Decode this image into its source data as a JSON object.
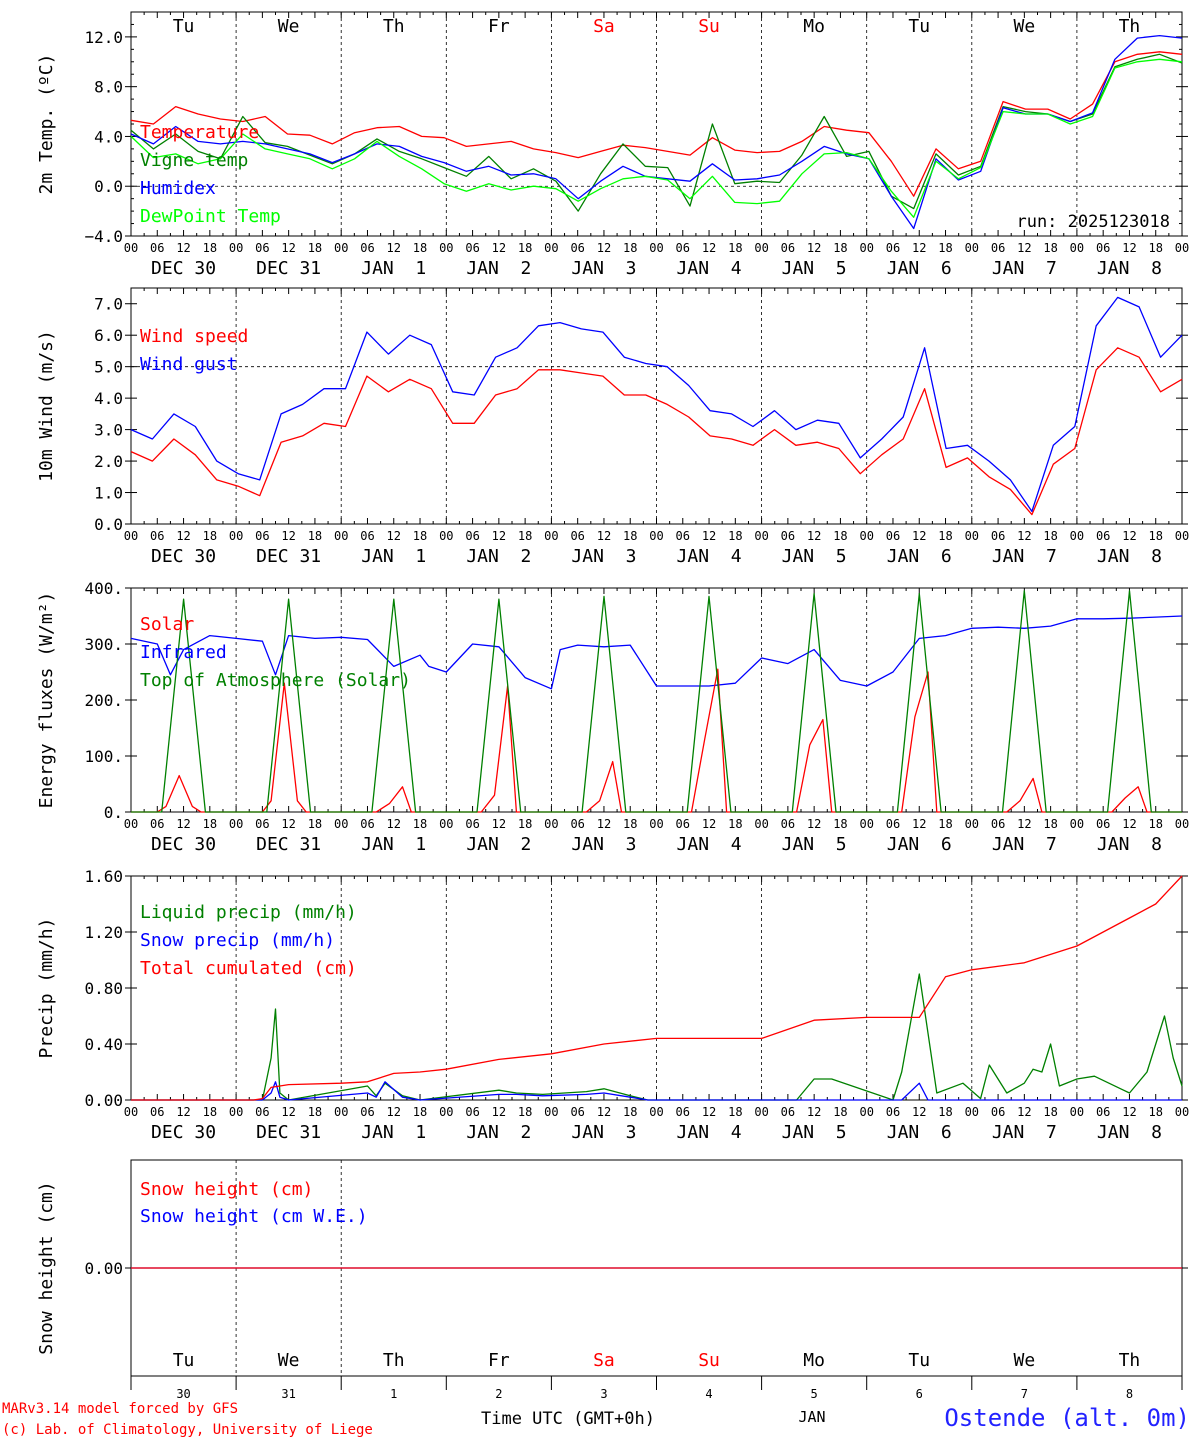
{
  "colors": {
    "red": "#ff0000",
    "green": "#008000",
    "blue": "#0000ff",
    "light_green": "#00ff00",
    "axis": "#000000"
  },
  "time": {
    "days": [
      "DEC 30",
      "DEC 31",
      "JAN  1",
      "JAN  2",
      "JAN  3",
      "JAN  4",
      "JAN  5",
      "JAN  6",
      "JAN  7",
      "JAN  8"
    ],
    "weekdays": [
      "Tu",
      "We",
      "Th",
      "Fr",
      "Sa",
      "Su",
      "Mo",
      "Tu",
      "We",
      "Th"
    ],
    "weekend_flags": [
      false,
      false,
      false,
      false,
      true,
      true,
      false,
      false,
      false,
      false
    ],
    "day_numbers": [
      "30",
      "31",
      "1",
      "2",
      "3",
      "4",
      "5",
      "6",
      "7",
      "8"
    ],
    "hour_ticks": [
      "00",
      "06",
      "12",
      "18"
    ],
    "end_tick": "00",
    "month_label": "JAN",
    "xlabel": "Time UTC (GMT+0h)"
  },
  "footer": {
    "model_line": "MARv3.14 model forced by GFS",
    "credit_line": "(c) Lab. of Climatology, University of Liege",
    "station": "Ostende (alt. 0m)"
  },
  "chart_data": [
    {
      "id": "temp",
      "type": "line",
      "ylabel": "2m Temp. (ºC)",
      "ylim": [
        -4,
        14
      ],
      "yticks": [
        -4,
        0,
        4,
        8,
        12
      ],
      "ytick_labels": [
        "−4.0",
        "0.0",
        "4.0",
        "8.0",
        "12.0"
      ],
      "ref_line": 0,
      "annotation": "run: 2025123018",
      "x_hours_step": 6,
      "legend": [
        {
          "name": "Temperature",
          "color": "#ff0000"
        },
        {
          "name": "Vigne temp",
          "color": "#008000"
        },
        {
          "name": "Humidex",
          "color": "#0000ff"
        },
        {
          "name": "DewPoint Temp",
          "color": "#00ff00"
        }
      ],
      "series": [
        {
          "name": "Temperature",
          "color": "#ff0000",
          "values": [
            5.3,
            5.0,
            6.4,
            5.8,
            5.4,
            5.2,
            5.6,
            4.2,
            4.1,
            3.4,
            4.3,
            4.7,
            4.8,
            4.0,
            3.9,
            3.2,
            3.4,
            3.6,
            3.0,
            2.7,
            2.3,
            2.8,
            3.3,
            3.1,
            2.8,
            2.5,
            3.9,
            2.9,
            2.7,
            2.8,
            3.6,
            4.8,
            4.5,
            4.3,
            2.0,
            -0.8,
            3.0,
            1.4,
            2.0,
            6.8,
            6.2,
            6.2,
            5.4,
            6.6,
            10.0,
            10.6,
            10.8,
            10.6
          ]
        },
        {
          "name": "Vigne temp",
          "color": "#008000",
          "values": [
            4.5,
            3.0,
            4.2,
            2.8,
            2.2,
            5.6,
            3.5,
            3.2,
            2.5,
            1.8,
            2.6,
            3.8,
            2.8,
            2.2,
            1.5,
            0.8,
            2.4,
            0.6,
            1.4,
            0.4,
            -2.0,
            1.0,
            3.4,
            1.6,
            1.5,
            -1.6,
            5.0,
            0.2,
            0.4,
            0.3,
            2.5,
            5.6,
            2.4,
            2.8,
            -0.8,
            -1.8,
            2.6,
            0.9,
            1.6,
            6.4,
            6.0,
            5.8,
            5.2,
            5.8,
            9.6,
            10.2,
            10.6,
            9.9
          ]
        },
        {
          "name": "Humidex",
          "color": "#0000ff",
          "values": [
            4.2,
            3.4,
            4.8,
            3.6,
            3.4,
            3.6,
            3.4,
            3.0,
            2.6,
            1.9,
            2.6,
            3.4,
            3.2,
            2.4,
            1.9,
            1.2,
            1.6,
            0.9,
            1.0,
            0.6,
            -1.0,
            0.4,
            1.6,
            0.8,
            0.6,
            0.4,
            1.8,
            0.5,
            0.6,
            0.9,
            2.0,
            3.2,
            2.6,
            2.2,
            -0.8,
            -3.4,
            2.2,
            0.5,
            1.2,
            6.3,
            5.8,
            5.8,
            5.2,
            5.9,
            10.2,
            11.9,
            12.1,
            11.9
          ]
        },
        {
          "name": "DewPoint Temp",
          "color": "#00ff00",
          "values": [
            4.0,
            2.3,
            2.6,
            1.8,
            2.2,
            4.2,
            3.0,
            2.6,
            2.2,
            1.4,
            2.2,
            3.6,
            2.4,
            1.4,
            0.2,
            -0.4,
            0.2,
            -0.3,
            0.0,
            -0.2,
            -1.2,
            -0.2,
            0.6,
            0.8,
            0.5,
            -1.0,
            0.8,
            -1.3,
            -1.4,
            -1.2,
            1.0,
            2.6,
            2.7,
            2.2,
            -0.4,
            -2.5,
            2.0,
            0.6,
            1.5,
            6.0,
            5.8,
            5.8,
            5.0,
            5.6,
            9.5,
            10.0,
            10.2,
            10.0
          ]
        }
      ]
    },
    {
      "id": "wind",
      "type": "line",
      "ylabel": "10m Wind (m/s)",
      "ylim": [
        0,
        7.5
      ],
      "yticks": [
        0,
        1,
        2,
        3,
        4,
        5,
        6,
        7
      ],
      "ytick_labels": [
        "0.0",
        "1.0",
        "2.0",
        "3.0",
        "4.0",
        "5.0",
        "6.0",
        "7.0"
      ],
      "ref_line": 5,
      "x_hours_step": 6,
      "legend": [
        {
          "name": "Wind speed",
          "color": "#ff0000"
        },
        {
          "name": "Wind gust",
          "color": "#0000ff"
        }
      ],
      "series": [
        {
          "name": "Wind speed",
          "color": "#ff0000",
          "values": [
            2.3,
            2.0,
            2.7,
            2.2,
            1.4,
            1.2,
            0.9,
            2.6,
            2.8,
            3.2,
            3.1,
            4.7,
            4.2,
            4.6,
            4.3,
            3.2,
            3.2,
            4.1,
            4.3,
            4.9,
            4.9,
            4.8,
            4.7,
            4.1,
            4.1,
            3.8,
            3.4,
            2.8,
            2.7,
            2.5,
            3.0,
            2.5,
            2.6,
            2.4,
            1.6,
            2.2,
            2.7,
            4.3,
            1.8,
            2.1,
            1.5,
            1.1,
            0.3,
            1.9,
            2.4,
            4.9,
            5.6,
            5.3,
            4.2,
            4.6
          ]
        },
        {
          "name": "Wind gust",
          "color": "#0000ff",
          "values": [
            3.0,
            2.7,
            3.5,
            3.1,
            2.0,
            1.6,
            1.4,
            3.5,
            3.8,
            4.3,
            4.3,
            6.1,
            5.4,
            6.0,
            5.7,
            4.2,
            4.1,
            5.3,
            5.6,
            6.3,
            6.4,
            6.2,
            6.1,
            5.3,
            5.1,
            5.0,
            4.4,
            3.6,
            3.5,
            3.1,
            3.6,
            3.0,
            3.3,
            3.2,
            2.1,
            2.7,
            3.4,
            5.6,
            2.4,
            2.5,
            2.0,
            1.4,
            0.4,
            2.5,
            3.1,
            6.3,
            7.2,
            6.9,
            5.3,
            6.0
          ]
        }
      ]
    },
    {
      "id": "flux",
      "type": "line",
      "ylabel": "Energy fluxes (W/m²)",
      "ylim": [
        0,
        400
      ],
      "yticks": [
        0,
        100,
        200,
        300,
        400
      ],
      "ytick_labels": [
        "0.",
        "100.",
        "200.",
        "300.",
        "400."
      ],
      "x_hours_step": 6,
      "legend": [
        {
          "name": "Solar",
          "color": "#ff0000"
        },
        {
          "name": "Infrared",
          "color": "#0000ff"
        },
        {
          "name": "Top of Atmosphere (Solar)",
          "color": "#008000"
        }
      ],
      "series": [
        {
          "name": "Infrared",
          "color": "#0000ff",
          "x_hours": [
            0,
            6,
            9,
            12,
            18,
            24,
            30,
            33,
            36,
            42,
            48,
            54,
            60,
            66,
            68,
            72,
            78,
            84,
            90,
            96,
            98,
            102,
            108,
            114,
            120,
            126,
            132,
            138,
            144,
            150,
            156,
            162,
            168,
            174,
            180,
            186,
            192,
            198,
            204,
            210,
            216,
            222,
            228,
            234,
            240
          ],
          "values": [
            310,
            300,
            245,
            290,
            315,
            310,
            305,
            245,
            315,
            310,
            312,
            308,
            260,
            280,
            260,
            250,
            300,
            295,
            240,
            220,
            290,
            298,
            295,
            298,
            225,
            225,
            225,
            230,
            275,
            265,
            290,
            235,
            225,
            250,
            310,
            315,
            328,
            330,
            328,
            332,
            345,
            345,
            346,
            348,
            350
          ]
        },
        {
          "name": "Solar",
          "color": "#ff0000",
          "x_hours": [
            0,
            6,
            8,
            11,
            14,
            16,
            24,
            30,
            32,
            35,
            38,
            40,
            48,
            56,
            59,
            62,
            64,
            72,
            80,
            83,
            86,
            88,
            96,
            104,
            107,
            110,
            112,
            120,
            128,
            131,
            134,
            136,
            144,
            152,
            155,
            158,
            160,
            168,
            176,
            179,
            182,
            184,
            192,
            200,
            203,
            206,
            208,
            216,
            224,
            227,
            230,
            232,
            240
          ],
          "values": [
            0,
            0,
            10,
            65,
            10,
            0,
            0,
            0,
            20,
            230,
            20,
            0,
            0,
            0,
            15,
            45,
            0,
            0,
            0,
            30,
            225,
            0,
            0,
            0,
            20,
            90,
            0,
            0,
            0,
            130,
            255,
            0,
            0,
            0,
            120,
            165,
            0,
            0,
            0,
            170,
            250,
            0,
            0,
            0,
            20,
            60,
            0,
            0,
            0,
            25,
            45,
            0,
            0
          ]
        },
        {
          "name": "Top of Atmosphere (Solar)",
          "color": "#008000",
          "x_hours": [
            0,
            7,
            12,
            17,
            24,
            31,
            36,
            41,
            48,
            55,
            60,
            65,
            72,
            79,
            84,
            89,
            96,
            103,
            108,
            113,
            120,
            127,
            132,
            137,
            144,
            151,
            156,
            161,
            168,
            175,
            180,
            185,
            192,
            199,
            204,
            209,
            216,
            223,
            228,
            233,
            240
          ],
          "values": [
            0,
            0,
            380,
            0,
            0,
            0,
            380,
            0,
            0,
            0,
            380,
            0,
            0,
            0,
            380,
            0,
            0,
            0,
            385,
            0,
            0,
            0,
            385,
            0,
            0,
            0,
            390,
            0,
            0,
            0,
            390,
            0,
            0,
            0,
            395,
            0,
            0,
            0,
            395,
            0,
            0
          ]
        }
      ]
    },
    {
      "id": "precip",
      "type": "line",
      "ylabel": "Precip (mm/h)",
      "ylim": [
        0,
        1.6
      ],
      "yticks": [
        0,
        0.4,
        0.8,
        1.2,
        1.6
      ],
      "ytick_labels": [
        "0.00",
        "0.40",
        "0.80",
        "1.20",
        "1.60"
      ],
      "x_hours_step": 6,
      "legend": [
        {
          "name": "Liquid precip (mm/h)",
          "color": "#008000"
        },
        {
          "name": "Snow precip (mm/h)",
          "color": "#0000ff"
        },
        {
          "name": "Total cumulated (cm)",
          "color": "#ff0000"
        }
      ],
      "series": [
        {
          "name": "Liquid precip (mm/h)",
          "color": "#008000",
          "x_hours": [
            0,
            30,
            32,
            33,
            34,
            36,
            54,
            56,
            58,
            62,
            66,
            84,
            88,
            94,
            104,
            108,
            114,
            118,
            152,
            156,
            160,
            174,
            176,
            180,
            184,
            190,
            194,
            196,
            200,
            204,
            206,
            208,
            210,
            212,
            216,
            220,
            226,
            228,
            232,
            236,
            238,
            240
          ],
          "values": [
            0,
            0,
            0.3,
            0.65,
            0.05,
            0,
            0.1,
            0.03,
            0.12,
            0.03,
            0,
            0.07,
            0.05,
            0.04,
            0.06,
            0.08,
            0.03,
            0,
            0,
            0.15,
            0.15,
            0,
            0.2,
            0.9,
            0.05,
            0.12,
            0.01,
            0.25,
            0.05,
            0.12,
            0.22,
            0.2,
            0.4,
            0.1,
            0.15,
            0.17,
            0.08,
            0.05,
            0.2,
            0.6,
            0.3,
            0.1
          ]
        },
        {
          "name": "Snow precip (mm/h)",
          "color": "#0000ff",
          "x_hours": [
            0,
            30,
            32,
            33,
            34,
            36,
            54,
            56,
            58,
            62,
            66,
            84,
            88,
            94,
            104,
            108,
            114,
            118,
            176,
            180,
            182,
            240
          ],
          "values": [
            0,
            0,
            0.05,
            0.13,
            0.02,
            0,
            0.05,
            0.02,
            0.13,
            0.02,
            0,
            0.04,
            0.04,
            0.03,
            0.04,
            0.05,
            0.02,
            0,
            0,
            0.12,
            0,
            0
          ]
        },
        {
          "name": "Total cumulated (cm)",
          "color": "#ff0000",
          "x_hours": [
            0,
            28,
            30,
            32,
            36,
            48,
            54,
            60,
            66,
            72,
            84,
            96,
            108,
            120,
            144,
            156,
            168,
            180,
            186,
            192,
            204,
            216,
            228,
            234,
            240
          ],
          "values": [
            0,
            0,
            0.01,
            0.09,
            0.11,
            0.12,
            0.13,
            0.19,
            0.2,
            0.22,
            0.29,
            0.33,
            0.4,
            0.44,
            0.44,
            0.57,
            0.59,
            0.59,
            0.88,
            0.93,
            0.98,
            1.1,
            1.3,
            1.4,
            1.6
          ]
        }
      ]
    },
    {
      "id": "snow",
      "type": "line",
      "ylabel": "Snow height (cm)",
      "ylim": [
        -1,
        1
      ],
      "yticks": [
        0
      ],
      "ytick_labels": [
        "0.00"
      ],
      "x_hours_step": 24,
      "legend": [
        {
          "name": "Snow height (cm)",
          "color": "#ff0000"
        },
        {
          "name": "Snow height (cm W.E.)",
          "color": "#0000ff"
        }
      ],
      "series": [
        {
          "name": "Snow height (cm W.E.)",
          "color": "#0000ff",
          "x_hours": [
            0,
            240
          ],
          "values": [
            0,
            0
          ]
        },
        {
          "name": "Snow height (cm)",
          "color": "#ff0000",
          "x_hours": [
            0,
            240
          ],
          "values": [
            0,
            0
          ]
        }
      ]
    }
  ]
}
